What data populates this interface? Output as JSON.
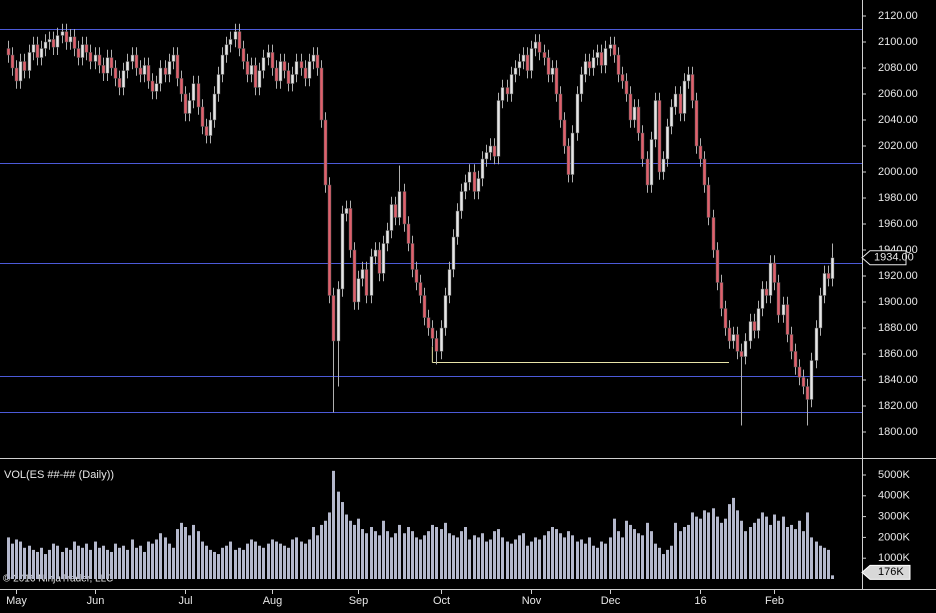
{
  "chart_data": [
    {
      "type": "candlestick",
      "categories": [
        null,
        null,
        "May",
        null,
        null,
        null,
        null,
        null,
        null,
        null,
        null,
        null,
        null,
        null,
        null,
        null,
        null,
        null,
        null,
        null,
        null,
        "Jun",
        null,
        null,
        null,
        null,
        null,
        null,
        null,
        null,
        null,
        null,
        null,
        null,
        null,
        null,
        null,
        null,
        null,
        null,
        null,
        null,
        null,
        "Jul",
        null,
        null,
        null,
        null,
        null,
        null,
        null,
        null,
        null,
        null,
        null,
        null,
        null,
        null,
        null,
        null,
        null,
        null,
        null,
        null,
        "Aug",
        null,
        null,
        null,
        null,
        null,
        null,
        null,
        null,
        null,
        null,
        null,
        null,
        null,
        null,
        null,
        null,
        null,
        null,
        null,
        null,
        "Sep",
        null,
        null,
        null,
        null,
        null,
        null,
        null,
        null,
        null,
        null,
        null,
        null,
        null,
        null,
        null,
        null,
        null,
        null,
        null,
        "Oct",
        null,
        null,
        null,
        null,
        null,
        null,
        null,
        null,
        null,
        null,
        null,
        null,
        null,
        null,
        null,
        null,
        null,
        null,
        null,
        null,
        null,
        "Nov",
        null,
        null,
        null,
        null,
        null,
        null,
        null,
        null,
        null,
        null,
        null,
        null,
        null,
        null,
        null,
        null,
        null,
        null,
        "Dec",
        null,
        null,
        null,
        null,
        null,
        null,
        null,
        null,
        null,
        null,
        null,
        null,
        null,
        null,
        null,
        null,
        null,
        null,
        null,
        null,
        null,
        "16",
        null,
        null,
        null,
        null,
        null,
        null,
        null,
        null,
        null,
        null,
        null,
        null,
        null,
        null,
        null,
        null,
        null,
        "Feb",
        null,
        null,
        null,
        null,
        null,
        null,
        null,
        null,
        null,
        null,
        null,
        null,
        null,
        null
      ],
      "open": [
        2095,
        2090,
        2080,
        2070,
        2085,
        2078,
        2092,
        2098,
        2088,
        2095,
        2100,
        2102,
        2096,
        2105,
        2108,
        2100,
        2104,
        2095,
        2088,
        2098,
        2092,
        2085,
        2090,
        2082,
        2076,
        2088,
        2080,
        2072,
        2065,
        2078,
        2085,
        2090,
        2080,
        2075,
        2082,
        2070,
        2062,
        2068,
        2080,
        2075,
        2085,
        2090,
        2072,
        2060,
        2045,
        2055,
        2068,
        2050,
        2035,
        2028,
        2040,
        2060,
        2075,
        2090,
        2098,
        2102,
        2108,
        2095,
        2085,
        2075,
        2082,
        2065,
        2078,
        2088,
        2092,
        2080,
        2070,
        2085,
        2078,
        2068,
        2075,
        2085,
        2080,
        2072,
        2085,
        2090,
        2080,
        2040,
        1990,
        1905,
        1870,
        1910,
        1968,
        1972,
        1940,
        1900,
        1918,
        1925,
        1905,
        1935,
        1940,
        1922,
        1945,
        1955,
        1975,
        1965,
        1985,
        1960,
        1945,
        1925,
        1915,
        1905,
        1888,
        1880,
        1872,
        1862,
        1880,
        1905,
        1925,
        1950,
        1970,
        1985,
        1992,
        2000,
        1985,
        1995,
        2010,
        2015,
        2020,
        2012,
        2055,
        2065,
        2060,
        2075,
        2080,
        2085,
        2090,
        2078,
        2095,
        2100,
        2092,
        2088,
        2075,
        2080,
        2060,
        2040,
        2020,
        1998,
        2030,
        2060,
        2075,
        2085,
        2080,
        2088,
        2092,
        2082,
        2095,
        2098,
        2090,
        2075,
        2070,
        2060,
        2040,
        2050,
        2030,
        2010,
        1990,
        2025,
        2055,
        2000,
        2010,
        2035,
        2050,
        2060,
        2045,
        2070,
        2075,
        2055,
        2020,
        2010,
        1990,
        1965,
        1940,
        1915,
        1895,
        1880,
        1870,
        1875,
        1862,
        1858,
        1870,
        1885,
        1878,
        1895,
        1910,
        1905,
        1930,
        1915,
        1890,
        1898,
        1875,
        1862,
        1850,
        1842,
        1835,
        1825,
        1855,
        1880,
        1905,
        1922,
        1918
      ],
      "high": [
        2101,
        2096,
        2086,
        2091,
        2091,
        2098,
        2104,
        2104,
        2101,
        2106,
        2108,
        2108,
        2111,
        2114,
        2114,
        2110,
        2110,
        2101,
        2104,
        2104,
        2098,
        2096,
        2096,
        2088,
        2094,
        2094,
        2086,
        2078,
        2084,
        2091,
        2096,
        2096,
        2086,
        2088,
        2088,
        2076,
        2074,
        2086,
        2086,
        2091,
        2096,
        2096,
        2078,
        2066,
        2061,
        2074,
        2074,
        2056,
        2041,
        2046,
        2066,
        2081,
        2096,
        2104,
        2108,
        2114,
        2114,
        2101,
        2091,
        2088,
        2088,
        2084,
        2094,
        2098,
        2098,
        2086,
        2091,
        2091,
        2084,
        2081,
        2091,
        2091,
        2086,
        2091,
        2096,
        2096,
        2086,
        2046,
        1996,
        1911,
        1916,
        1974,
        1978,
        1978,
        1946,
        1924,
        1931,
        1931,
        1941,
        1946,
        1946,
        1951,
        1961,
        1981,
        1981,
        2005,
        1991,
        1966,
        1951,
        1931,
        1921,
        1911,
        1894,
        1886,
        1878,
        1886,
        1911,
        1931,
        1956,
        1976,
        1991,
        1998,
        2006,
        2006,
        2001,
        2016,
        2021,
        2026,
        2026,
        2061,
        2071,
        2071,
        2081,
        2086,
        2091,
        2096,
        2096,
        2101,
        2106,
        2106,
        2098,
        2094,
        2086,
        2086,
        2066,
        2046,
        2026,
        2036,
        2066,
        2081,
        2091,
        2091,
        2094,
        2098,
        2098,
        2101,
        2104,
        2104,
        2096,
        2081,
        2076,
        2066,
        2056,
        2056,
        2036,
        2016,
        2031,
        2061,
        2061,
        2016,
        2041,
        2056,
        2066,
        2066,
        2076,
        2081,
        2081,
        2061,
        2026,
        2016,
        1996,
        1971,
        1946,
        1921,
        1901,
        1886,
        1881,
        1881,
        1868,
        1876,
        1891,
        1891,
        1901,
        1916,
        1916,
        1936,
        1936,
        1921,
        1904,
        1904,
        1881,
        1868,
        1856,
        1848,
        1841,
        1861,
        1886,
        1911,
        1928,
        1928,
        1945
      ],
      "low": [
        2084,
        2074,
        2064,
        2064,
        2072,
        2072,
        2086,
        2082,
        2082,
        2089,
        2094,
        2090,
        2090,
        2099,
        2094,
        2094,
        2089,
        2082,
        2082,
        2086,
        2079,
        2079,
        2076,
        2070,
        2070,
        2074,
        2066,
        2059,
        2059,
        2072,
        2079,
        2074,
        2069,
        2069,
        2064,
        2056,
        2056,
        2062,
        2069,
        2069,
        2079,
        2066,
        2054,
        2039,
        2039,
        2049,
        2044,
        2029,
        2022,
        2022,
        2034,
        2054,
        2069,
        2084,
        2092,
        2096,
        2089,
        2079,
        2069,
        2069,
        2059,
        2059,
        2072,
        2082,
        2074,
        2064,
        2064,
        2072,
        2062,
        2062,
        2069,
        2074,
        2066,
        2066,
        2079,
        2074,
        2034,
        1984,
        1899,
        1815,
        1835,
        1904,
        1962,
        1934,
        1894,
        1894,
        1912,
        1899,
        1899,
        1929,
        1916,
        1916,
        1939,
        1949,
        1959,
        1959,
        1954,
        1939,
        1919,
        1909,
        1899,
        1882,
        1874,
        1866,
        1852,
        1856,
        1874,
        1899,
        1919,
        1944,
        1964,
        1979,
        1986,
        1979,
        1979,
        1989,
        2004,
        2009,
        2006,
        2006,
        2049,
        2054,
        2054,
        2069,
        2074,
        2079,
        2072,
        2072,
        2089,
        2086,
        2082,
        2069,
        2069,
        2054,
        2034,
        2014,
        1992,
        1992,
        2024,
        2054,
        2069,
        2074,
        2074,
        2082,
        2076,
        2076,
        2089,
        2084,
        2069,
        2064,
        2054,
        2034,
        2034,
        2024,
        2004,
        1984,
        1984,
        2019,
        1994,
        1994,
        2004,
        2029,
        2044,
        2039,
        2039,
        2064,
        2049,
        2014,
        2004,
        1984,
        1959,
        1934,
        1909,
        1889,
        1874,
        1864,
        1864,
        1856,
        1805,
        1852,
        1864,
        1872,
        1872,
        1889,
        1899,
        1899,
        1909,
        1884,
        1884,
        1869,
        1856,
        1844,
        1836,
        1829,
        1805,
        1819,
        1849,
        1874,
        1899,
        1912,
        1912
      ],
      "close": [
        2090,
        2080,
        2070,
        2085,
        2078,
        2092,
        2098,
        2088,
        2095,
        2100,
        2102,
        2096,
        2105,
        2108,
        2100,
        2104,
        2095,
        2088,
        2098,
        2092,
        2085,
        2090,
        2082,
        2076,
        2088,
        2080,
        2072,
        2065,
        2078,
        2085,
        2090,
        2080,
        2075,
        2082,
        2070,
        2062,
        2068,
        2080,
        2075,
        2085,
        2090,
        2072,
        2060,
        2045,
        2055,
        2068,
        2050,
        2035,
        2028,
        2040,
        2060,
        2075,
        2090,
        2098,
        2102,
        2108,
        2095,
        2085,
        2075,
        2082,
        2065,
        2078,
        2088,
        2092,
        2080,
        2070,
        2085,
        2078,
        2068,
        2075,
        2085,
        2080,
        2072,
        2085,
        2090,
        2080,
        2040,
        1990,
        1905,
        1870,
        1910,
        1968,
        1972,
        1940,
        1900,
        1918,
        1925,
        1905,
        1935,
        1940,
        1922,
        1945,
        1955,
        1975,
        1965,
        1985,
        1960,
        1945,
        1925,
        1915,
        1905,
        1888,
        1880,
        1872,
        1862,
        1880,
        1905,
        1925,
        1950,
        1970,
        1985,
        1992,
        2000,
        1985,
        1995,
        2010,
        2015,
        2020,
        2012,
        2055,
        2065,
        2060,
        2075,
        2080,
        2085,
        2090,
        2078,
        2095,
        2100,
        2092,
        2088,
        2075,
        2080,
        2060,
        2040,
        2020,
        1998,
        2030,
        2060,
        2075,
        2085,
        2080,
        2088,
        2092,
        2082,
        2095,
        2098,
        2090,
        2075,
        2070,
        2060,
        2040,
        2050,
        2030,
        2010,
        1990,
        2025,
        2055,
        2000,
        2010,
        2035,
        2050,
        2060,
        2045,
        2070,
        2075,
        2055,
        2020,
        2010,
        1990,
        1965,
        1940,
        1915,
        1895,
        1880,
        1870,
        1875,
        1862,
        1858,
        1870,
        1885,
        1878,
        1895,
        1910,
        1905,
        1930,
        1915,
        1890,
        1898,
        1875,
        1862,
        1850,
        1842,
        1835,
        1825,
        1855,
        1880,
        1905,
        1922,
        1918,
        1934
      ],
      "up_color": "#e6e6e6",
      "down_color": "#e0606c",
      "wick_color": "#b0b0b0",
      "ylim": [
        1780,
        2132.3
      ],
      "yticks": [
        {
          "value": 1800,
          "label": "1800.00"
        },
        {
          "value": 1820,
          "label": "1820.00"
        },
        {
          "value": 1840,
          "label": "1840.00"
        },
        {
          "value": 1860,
          "label": "1860.00"
        },
        {
          "value": 1880,
          "label": "1880.00"
        },
        {
          "value": 1900,
          "label": "1900.00"
        },
        {
          "value": 1920,
          "label": "1920.00"
        },
        {
          "value": 1940,
          "label": "1940.00"
        },
        {
          "value": 1960,
          "label": "1960.00"
        },
        {
          "value": 1980,
          "label": "1980.00"
        },
        {
          "value": 2000,
          "label": "2000.00"
        },
        {
          "value": 2020,
          "label": "2020.00"
        },
        {
          "value": 2040,
          "label": "2040.00"
        },
        {
          "value": 2060,
          "label": "2060.00"
        },
        {
          "value": 2080,
          "label": "2080.00"
        },
        {
          "value": 2100,
          "label": "2100.00"
        },
        {
          "value": 2120,
          "label": "2120.00"
        }
      ],
      "reference_lines": [
        2110,
        2007,
        1930,
        1843,
        1815
      ],
      "reference_color": "#4c5ad8",
      "range_line": {
        "value": 1854,
        "start": 103,
        "end": 175,
        "color": "#e8e4a8"
      },
      "last_label": "1934.00"
    },
    {
      "type": "bar",
      "title": "VOL(ES ##-## (Daily))",
      "values": [
        2000,
        1700,
        1900,
        1800,
        1500,
        1600,
        1400,
        1300,
        1500,
        1200,
        1400,
        1700,
        1600,
        1300,
        1500,
        1400,
        1800,
        1600,
        1500,
        1700,
        1400,
        1800,
        1500,
        1600,
        1400,
        1300,
        1700,
        1500,
        1600,
        1400,
        1900,
        1500,
        1600,
        1300,
        1800,
        1700,
        1900,
        2200,
        2000,
        1700,
        1500,
        2400,
        2700,
        2500,
        2100,
        2600,
        2300,
        1800,
        1600,
        1400,
        1300,
        1200,
        1500,
        1600,
        1800,
        1400,
        1500,
        1400,
        1700,
        1900,
        1800,
        1600,
        1500,
        1700,
        1900,
        1800,
        1700,
        1600,
        1500,
        1900,
        2000,
        1800,
        1700,
        1900,
        2500,
        2100,
        2600,
        2800,
        3200,
        5200,
        4200,
        3700,
        3100,
        2800,
        2600,
        2900,
        2400,
        2200,
        2500,
        2300,
        2100,
        2800,
        2300,
        2000,
        2200,
        2600,
        2200,
        2500,
        2300,
        2000,
        1900,
        2100,
        2300,
        2600,
        2500,
        2400,
        2700,
        2200,
        2100,
        2000,
        2300,
        2500,
        1900,
        2100,
        2000,
        2200,
        1800,
        1900,
        2300,
        2400,
        2000,
        1800,
        1700,
        1900,
        2100,
        2200,
        1600,
        1800,
        2000,
        1900,
        2100,
        2300,
        2500,
        2400,
        2200,
        2000,
        2300,
        2100,
        1800,
        1900,
        1700,
        2000,
        1600,
        1500,
        1800,
        1700,
        2000,
        2900,
        2300,
        2000,
        2800,
        2600,
        2400,
        2200,
        2100,
        2700,
        2300,
        1700,
        1500,
        1200,
        1400,
        1600,
        2700,
        2300,
        2500,
        2600,
        3200,
        3000,
        2900,
        3300,
        3200,
        3400,
        3000,
        2700,
        2900,
        3600,
        3900,
        3300,
        2800,
        2300,
        2500,
        2700,
        2900,
        3200,
        3000,
        2600,
        3100,
        2800,
        3000,
        2500,
        2600,
        2400,
        2800,
        2300,
        3200,
        2000,
        1800,
        1600,
        1500,
        1400,
        176
      ],
      "color": "#b4b8cc",
      "ylim": [
        0,
        5625
      ],
      "yticks": [
        {
          "value": 1000,
          "label": "1000K"
        },
        {
          "value": 2000,
          "label": "2000K"
        },
        {
          "value": 3000,
          "label": "3000K"
        },
        {
          "value": 4000,
          "label": "4000K"
        },
        {
          "value": 5000,
          "label": "5000K"
        }
      ],
      "last_label": "176K"
    }
  ],
  "footer": "© 2016 NinjaTrader, LLC"
}
